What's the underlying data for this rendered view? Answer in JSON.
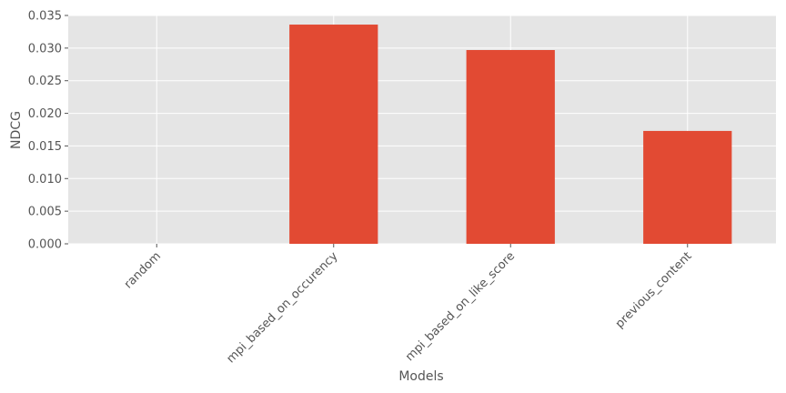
{
  "chart_data": {
    "type": "bar",
    "x_label": "Models",
    "y_label": "NDCG",
    "categories": [
      "random",
      "mpi_based_on_occurency",
      "mpi_based_on_like_score",
      "previous_content"
    ],
    "values": [
      0,
      0.0336,
      0.0297,
      0.0173
    ],
    "color": "#e24a33",
    "ylim": [
      0,
      0.035
    ],
    "yticks": [
      {
        "value": 0,
        "label": "0.000"
      },
      0.005,
      {
        "value": 0.01,
        "label": "0.010"
      },
      0.015,
      {
        "value": 0.02,
        "label": "0.020"
      },
      0.025,
      {
        "value": 0.03,
        "label": "0.030"
      },
      0.035
    ],
    "grid": true
  }
}
